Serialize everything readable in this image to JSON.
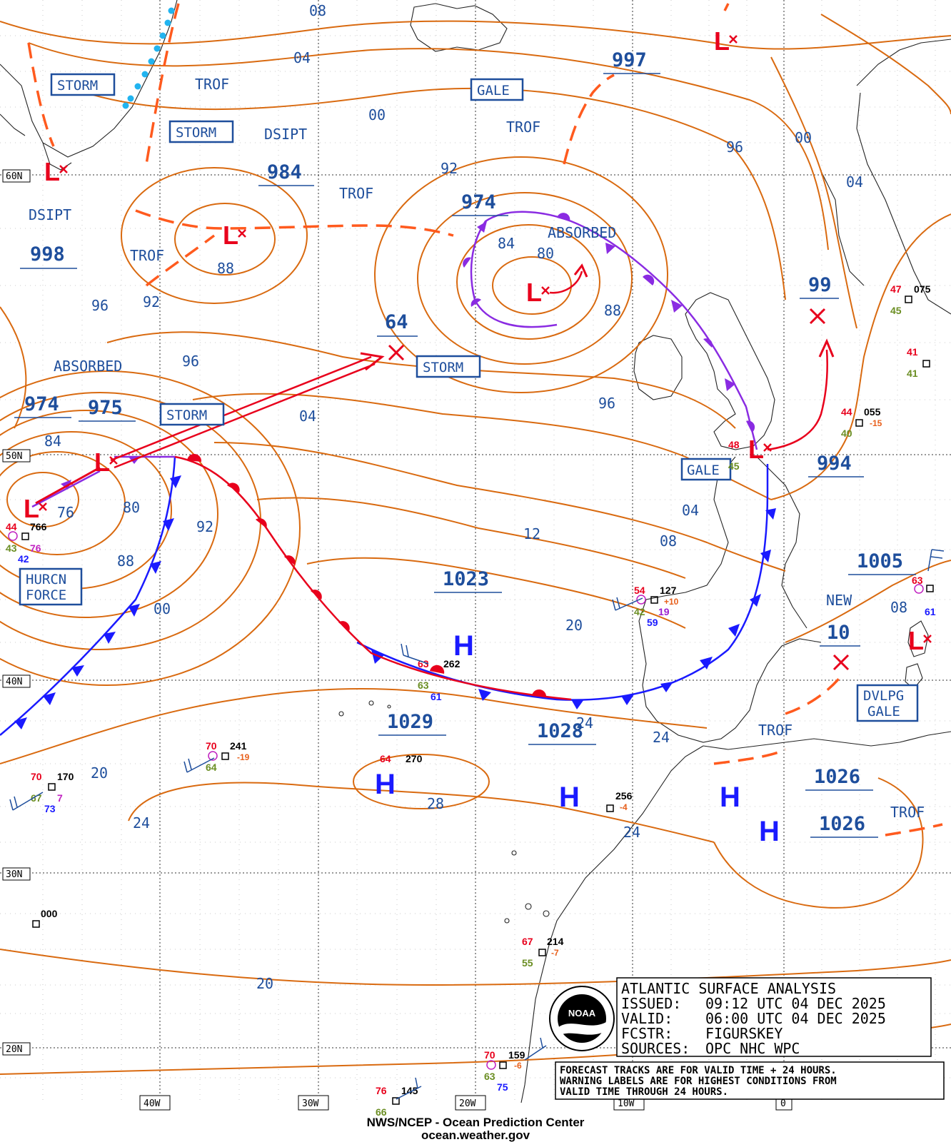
{
  "map": {
    "title": "ATLANTIC SURFACE ANALYSIS",
    "info_block": [
      {
        "label": "ISSUED:",
        "value": "09:12 UTC 04 DEC 2025"
      },
      {
        "label": "VALID:",
        "value": "06:00 UTC 04 DEC 2025"
      },
      {
        "label": "FCSTR:",
        "value": "FIGURSKEY"
      },
      {
        "label": "SOURCES:",
        "value": "OPC NHC WPC"
      }
    ],
    "notes": [
      "FORECAST TRACKS ARE FOR VALID TIME + 24 HOURS.",
      "WARNING LABELS ARE FOR HIGHEST CONDITIONS FROM",
      "VALID TIME THROUGH 24 HOURS."
    ],
    "credit_line1": "NWS/NCEP - Ocean Prediction Center",
    "credit_line2": "ocean.weather.gov",
    "logo_name": "NOAA",
    "colors": {
      "isobar": "#d96a10",
      "label_blue": "#1e4e9c",
      "low_red": "#e8001c",
      "trof": "#ff5a1e",
      "cold_front": "#1a1aff",
      "occluded": "#8a2be2",
      "dryline_cyan": "#21b4f0",
      "grid": "#000000"
    },
    "lat_labels": [
      "60N",
      "50N",
      "40N",
      "30N",
      "20N"
    ],
    "lon_labels": [
      "40W",
      "30W",
      "20W",
      "10W",
      "0"
    ],
    "warning_boxes": [
      {
        "text": "STORM"
      },
      {
        "text": "STORM"
      },
      {
        "text": "GALE"
      },
      {
        "text": "STORM"
      },
      {
        "text": "STORM"
      },
      {
        "text": "GALE"
      },
      {
        "line1": "HURCN",
        "line2": "FORCE"
      },
      {
        "line1": "DVLPG",
        "line2": "GALE"
      }
    ],
    "system_labels": [
      "TROF",
      "DSIPT",
      "TROF",
      "TROF",
      "DSIPT",
      "TROF",
      "ABSORBED",
      "ABSORBED",
      "TROF",
      "NEW",
      "TROF"
    ],
    "pressure_labels": [
      "997",
      "984",
      "974",
      "998",
      "64",
      "99",
      "974",
      "975",
      "994",
      "1023",
      "1005",
      "10",
      "1029",
      "1028",
      "1026",
      "1026"
    ],
    "isobar_labels": [
      "08",
      "04",
      "00",
      "92",
      "96",
      "00",
      "04",
      "84",
      "80",
      "88",
      "88",
      "92",
      "96",
      "96",
      "96",
      "04",
      "84",
      "76",
      "80",
      "92",
      "88",
      "00",
      "04",
      "12",
      "08",
      "20",
      "24",
      "24",
      "20",
      "24",
      "28",
      "24",
      "20",
      "08"
    ],
    "highs": [
      "H",
      "H",
      "H",
      "H",
      "H"
    ],
    "lows": [
      "L",
      "L",
      "L",
      "L",
      "L",
      "L",
      "L",
      "L"
    ],
    "observations": [
      {
        "temp": "44",
        "press": "766",
        "dew": "43",
        "x": "76",
        "y": "42"
      },
      {
        "temp": "70",
        "press": "170",
        "dew": "67",
        "x": "7",
        "y": "73"
      },
      {
        "temp": "70",
        "press": "241",
        "dew": "64",
        "x": "-19"
      },
      {
        "temp": "63",
        "press": "262",
        "dew": "63",
        "y": "61"
      },
      {
        "temp": "64",
        "press": "270"
      },
      {
        "press": "256",
        "x": "-4"
      },
      {
        "temp": "54",
        "press": "127",
        "dew": "42",
        "x": "+10",
        "y": "19",
        "z": "59"
      },
      {
        "temp": "48",
        "press": "",
        "dew": "45"
      },
      {
        "temp": "44",
        "press": "055",
        "dew": "40",
        "x": "-15"
      },
      {
        "temp": "47",
        "press": "075",
        "dew": "45"
      },
      {
        "temp": "41",
        "press": "",
        "dew": "41"
      },
      {
        "temp": "63",
        "press": "",
        "y": "61"
      },
      {
        "press": "000"
      },
      {
        "temp": "67",
        "press": "214",
        "dew": "55",
        "x": "-7"
      },
      {
        "temp": "70",
        "press": "159",
        "dew": "63",
        "x": "-6",
        "y": "75"
      },
      {
        "temp": "76",
        "press": "145",
        "dew": "66"
      }
    ]
  }
}
